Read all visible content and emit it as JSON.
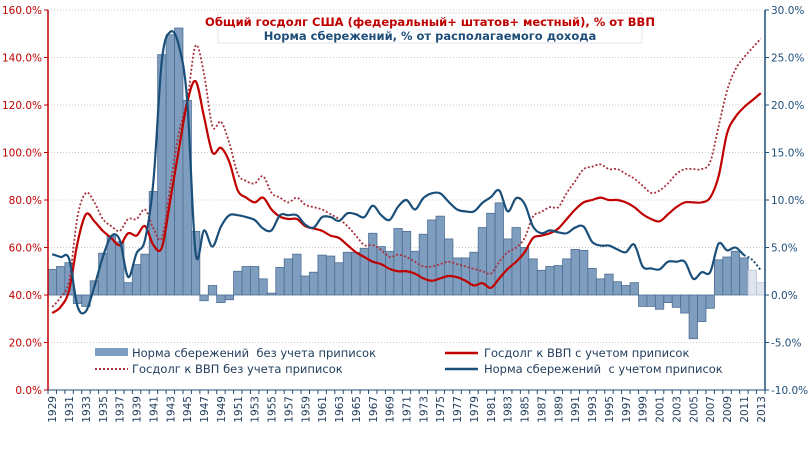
{
  "chart_data": {
    "type": "bar+line",
    "title": "Общий госдолг США (федеральный+ штатов+ местный), % от ВВП",
    "subtitle": "Норма сбережений, % от располагаемого дохода",
    "title_color": "#c00000",
    "subtitle_color": "#1f4e79",
    "x": [
      1929,
      1930,
      1931,
      1932,
      1933,
      1934,
      1935,
      1936,
      1937,
      1938,
      1939,
      1940,
      1941,
      1942,
      1943,
      1944,
      1945,
      1946,
      1947,
      1948,
      1949,
      1950,
      1951,
      1952,
      1953,
      1954,
      1955,
      1956,
      1957,
      1958,
      1959,
      1960,
      1961,
      1962,
      1963,
      1964,
      1965,
      1966,
      1967,
      1968,
      1969,
      1970,
      1971,
      1972,
      1973,
      1974,
      1975,
      1976,
      1977,
      1978,
      1979,
      1980,
      1981,
      1982,
      1983,
      1984,
      1985,
      1986,
      1987,
      1988,
      1989,
      1990,
      1991,
      1992,
      1993,
      1994,
      1995,
      1996,
      1997,
      1998,
      1999,
      2000,
      2001,
      2002,
      2003,
      2004,
      2005,
      2006,
      2007,
      2008,
      2009,
      2010,
      2011,
      2012,
      2013
    ],
    "x_tick_labels": [
      "1929",
      "1931",
      "1933",
      "1935",
      "1937",
      "1939",
      "1941",
      "1943",
      "1945",
      "1947",
      "1949",
      "1951",
      "1953",
      "1955",
      "1957",
      "1959",
      "1961",
      "1963",
      "1965",
      "1967",
      "1969",
      "1971",
      "1973",
      "1975",
      "1977",
      "1979",
      "1981",
      "1983",
      "1985",
      "1987",
      "1989",
      "1991",
      "1993",
      "1995",
      "1997",
      "1999",
      "2001",
      "2003",
      "2005",
      "2007",
      "2009",
      "2011",
      "2013"
    ],
    "y_left": {
      "range": [
        0,
        160
      ],
      "ticks": [
        "0.0%",
        "20.0%",
        "40.0%",
        "60.0%",
        "80.0%",
        "100.0%",
        "120.0%",
        "140.0%",
        "160.0%"
      ],
      "color": "#c00000"
    },
    "y_right": {
      "range": [
        -10,
        30
      ],
      "ticks": [
        "-10.0%",
        "-5.0%",
        "0.0%",
        "5.0%",
        "10.0%",
        "15.0%",
        "20.0%",
        "25.0%",
        "30.0%"
      ],
      "color": "#1f4e79"
    },
    "grid": true,
    "legend_position": "bottom-inside",
    "series": [
      {
        "name": "Норма сбережений  без учета приписок",
        "type": "bar",
        "axis": "right",
        "color": "#7f9dbf",
        "estimate_color": "#dfe5ef",
        "estimate_from": 2012,
        "values": [
          2.7,
          3.0,
          3.4,
          -0.9,
          -1.2,
          1.5,
          4.4,
          6.2,
          5.6,
          1.3,
          3.2,
          4.3,
          10.9,
          25.3,
          27.4,
          28.1,
          20.5,
          6.7,
          -0.6,
          1.0,
          -0.8,
          -0.5,
          2.5,
          3.0,
          3.0,
          1.7,
          0.2,
          2.9,
          3.8,
          4.3,
          2.0,
          2.4,
          4.2,
          4.1,
          3.4,
          4.5,
          4.5,
          4.9,
          6.5,
          5.1,
          4.6,
          7.0,
          6.7,
          4.6,
          6.4,
          7.9,
          8.3,
          5.9,
          3.9,
          3.9,
          4.5,
          7.1,
          8.6,
          9.7,
          5.9,
          7.1,
          5.0,
          3.8,
          2.6,
          3.0,
          3.1,
          3.8,
          4.8,
          4.7,
          2.8,
          1.7,
          2.2,
          1.4,
          1.0,
          1.3,
          -1.2,
          -1.2,
          -1.5,
          -0.8,
          -1.3,
          -1.9,
          -4.6,
          -2.8,
          -1.4,
          3.7,
          4.0,
          4.6,
          3.9,
          2.6,
          1.3
        ]
      },
      {
        "name": "Госдолг к ВВП без учета приписок",
        "type": "line",
        "style": "dotted",
        "axis": "left",
        "color": "#a8323e",
        "values": [
          35,
          39,
          46,
          73,
          83,
          79,
          72,
          69,
          67,
          72,
          72,
          76,
          68,
          64,
          86,
          108,
          122,
          145,
          133,
          111,
          113,
          104,
          91,
          88,
          87,
          90,
          83,
          81,
          79,
          81,
          78,
          77,
          76,
          74,
          72,
          69,
          65,
          61,
          61,
          59,
          56,
          57,
          56,
          54,
          52,
          52,
          53,
          54,
          53,
          52,
          51,
          50,
          49,
          54,
          58,
          60,
          64,
          73,
          75,
          77,
          77,
          83,
          88,
          93,
          94,
          95,
          93,
          93,
          91,
          89,
          86,
          83,
          84,
          87,
          91,
          93,
          93,
          93,
          96,
          111,
          126,
          135,
          140,
          144,
          148
        ]
      },
      {
        "name": "Госдолг к ВВП с учетом приписок",
        "type": "line",
        "style": "solid",
        "axis": "left",
        "color": "#c00000",
        "values": [
          32.4,
          35,
          42,
          62,
          74,
          71,
          67,
          64,
          61,
          66,
          65,
          69,
          61,
          60,
          80,
          101,
          121,
          130,
          115,
          100,
          102,
          96,
          84,
          81,
          79,
          81,
          76,
          73,
          72,
          72,
          69,
          68,
          67,
          65,
          64,
          61,
          58,
          56,
          54,
          53,
          51,
          50,
          50,
          49,
          47,
          46,
          47,
          48,
          47.5,
          46,
          44,
          45,
          43,
          47,
          51,
          54,
          58,
          64,
          65,
          66,
          68,
          72,
          76,
          79,
          80,
          81,
          80,
          80,
          79,
          77,
          74,
          72,
          71,
          74,
          77,
          79,
          79,
          79,
          81,
          90,
          108,
          115,
          119,
          122,
          125
        ]
      },
      {
        "name": "Норма сбережений  с учетом приписок",
        "type": "line",
        "style": "solid",
        "axis": "right",
        "color": "#1a4f7a",
        "dotted_from": 2011,
        "values": [
          4.3,
          4.0,
          3.8,
          -1.2,
          -1.7,
          0.9,
          4.0,
          6.2,
          5.8,
          1.9,
          4.4,
          5.8,
          12.0,
          24.7,
          27.7,
          26.3,
          20.5,
          4.4,
          6.8,
          5.1,
          7.2,
          8.4,
          8.4,
          8.2,
          7.9,
          7.0,
          6.8,
          8.4,
          8.4,
          8.4,
          7.4,
          7.1,
          8.2,
          8.2,
          7.8,
          8.6,
          8.5,
          8.2,
          9.4,
          8.4,
          7.9,
          9.3,
          10.0,
          9.0,
          10.2,
          10.7,
          10.7,
          9.8,
          9.0,
          8.8,
          8.8,
          9.7,
          10.3,
          11.0,
          8.8,
          10.2,
          9.6,
          7.2,
          6.5,
          6.8,
          6.6,
          6.5,
          7.1,
          7.2,
          5.6,
          5.2,
          5.2,
          4.8,
          4.5,
          5.3,
          3.0,
          2.8,
          2.7,
          3.5,
          3.5,
          3.5,
          1.7,
          2.4,
          2.4,
          5.4,
          4.7,
          5.0,
          4.2,
          3.7,
          2.6
        ]
      }
    ]
  }
}
